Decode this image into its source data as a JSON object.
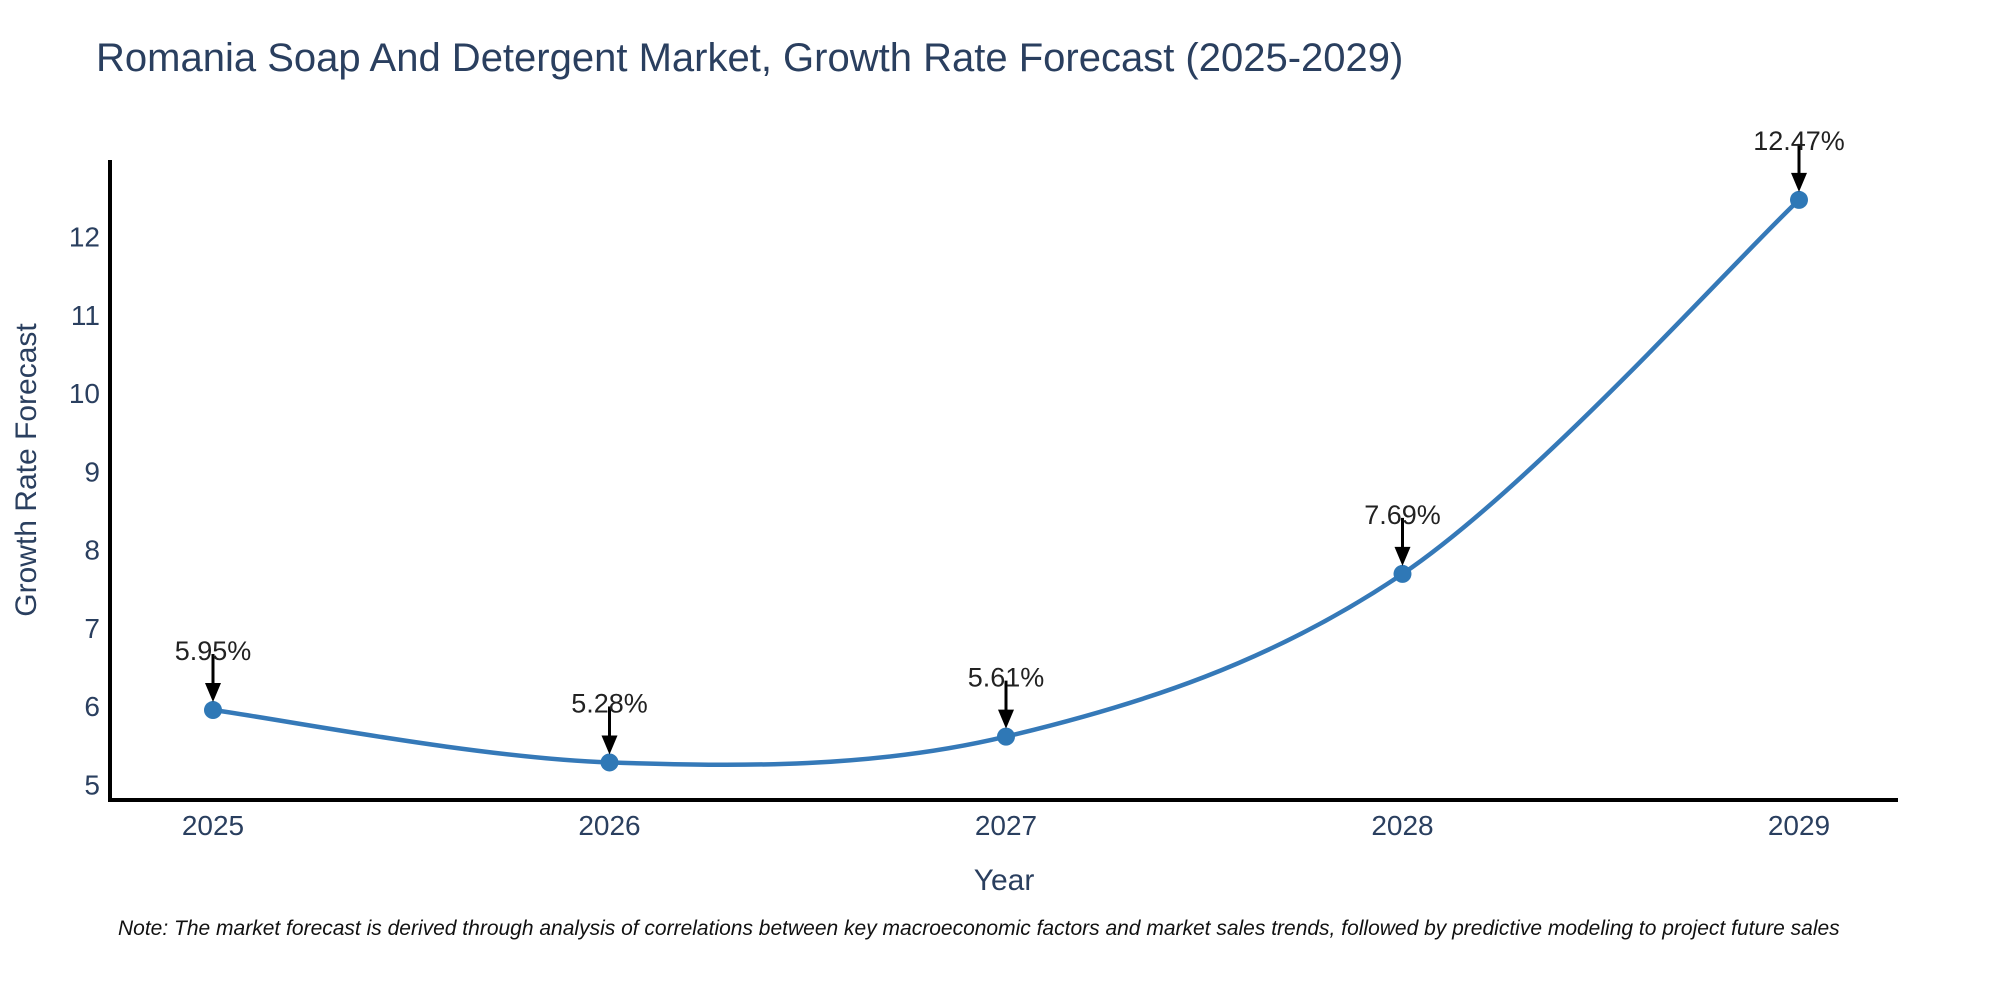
{
  "note": "Note: The market forecast is derived through analysis of correlations between key macroeconomic factors and market sales trends, followed by predictive modeling to project future sales",
  "chart_data": {
    "type": "line",
    "title": "Romania Soap And Detergent Market, Growth Rate Forecast (2025-2029)",
    "xlabel": "Year",
    "ylabel": "Growth Rate Forecast",
    "x": [
      "2025",
      "2026",
      "2027",
      "2028",
      "2029"
    ],
    "values": [
      5.95,
      5.28,
      5.61,
      7.69,
      12.47
    ],
    "point_labels": [
      "5.95%",
      "5.28%",
      "5.61%",
      "7.69%",
      "12.47%"
    ],
    "y_ticks": [
      5,
      6,
      7,
      8,
      9,
      10,
      11,
      12
    ],
    "ylim": [
      4.8,
      12.98
    ],
    "line_shape": "spline",
    "grid": false,
    "legend_position": "none",
    "colors": {
      "line": "#3579b8",
      "marker": "#2f78b6",
      "axis": "#000000",
      "text": "#2a3f5f",
      "annotation_text": "#222222",
      "arrow": "#000000",
      "background": "#ffffff"
    }
  }
}
